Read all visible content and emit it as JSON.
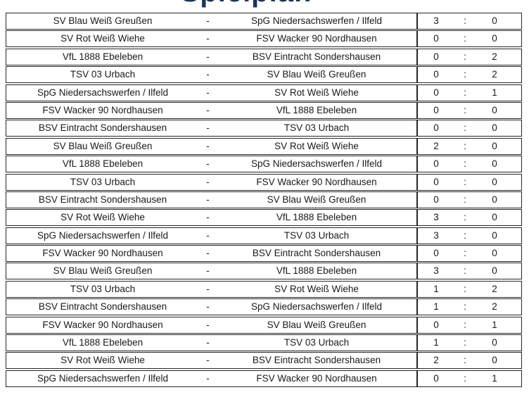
{
  "page": {
    "title": "Spielplan"
  },
  "labels": {
    "team_separator": "-",
    "score_separator": ":"
  },
  "colors": {
    "title": "#17375d",
    "border": "#262626",
    "text": "#1a1a1a",
    "background": "#ffffff"
  },
  "table": {
    "matches": [
      {
        "home": "SV Blau Weiß Greußen",
        "away": "SpG Niedersachswerfen / Ilfeld",
        "home_score": "3",
        "away_score": "0"
      },
      {
        "home": "SV Rot Weiß Wiehe",
        "away": "FSV Wacker 90 Nordhausen",
        "home_score": "0",
        "away_score": "0"
      },
      {
        "home": "VfL 1888 Ebeleben",
        "away": "BSV Eintracht Sondershausen",
        "home_score": "0",
        "away_score": "2"
      },
      {
        "home": "TSV 03 Urbach",
        "away": "SV Blau Weiß Greußen",
        "home_score": "0",
        "away_score": "2"
      },
      {
        "home": "SpG Niedersachswerfen / Ilfeld",
        "away": "SV Rot Weiß Wiehe",
        "home_score": "0",
        "away_score": "1"
      },
      {
        "home": "FSV Wacker 90 Nordhausen",
        "away": "VfL 1888 Ebeleben",
        "home_score": "0",
        "away_score": "0"
      },
      {
        "home": "BSV Eintracht Sondershausen",
        "away": "TSV 03 Urbach",
        "home_score": "0",
        "away_score": "0"
      },
      {
        "home": "SV Blau Weiß Greußen",
        "away": "SV Rot Weiß Wiehe",
        "home_score": "2",
        "away_score": "0"
      },
      {
        "home": "VfL 1888 Ebeleben",
        "away": "SpG Niedersachswerfen / Ilfeld",
        "home_score": "0",
        "away_score": "0"
      },
      {
        "home": "TSV 03 Urbach",
        "away": "FSV Wacker 90 Nordhausen",
        "home_score": "0",
        "away_score": "0"
      },
      {
        "home": "BSV Eintracht Sondershausen",
        "away": "SV Blau Weiß Greußen",
        "home_score": "0",
        "away_score": "0"
      },
      {
        "home": "SV Rot Weiß Wiehe",
        "away": "VfL 1888 Ebeleben",
        "home_score": "3",
        "away_score": "0"
      },
      {
        "home": "SpG Niedersachswerfen / Ilfeld",
        "away": "TSV 03 Urbach",
        "home_score": "3",
        "away_score": "0"
      },
      {
        "home": "FSV Wacker 90 Nordhausen",
        "away": "BSV Eintracht Sondershausen",
        "home_score": "0",
        "away_score": "0"
      },
      {
        "home": "SV Blau Weiß Greußen",
        "away": "VfL 1888 Ebeleben",
        "home_score": "3",
        "away_score": "0"
      },
      {
        "home": "TSV 03 Urbach",
        "away": "SV Rot Weiß Wiehe",
        "home_score": "1",
        "away_score": "2"
      },
      {
        "home": "BSV Eintracht Sondershausen",
        "away": "SpG Niedersachswerfen / Ilfeld",
        "home_score": "1",
        "away_score": "2"
      },
      {
        "home": "FSV Wacker 90 Nordhausen",
        "away": "SV Blau Weiß Greußen",
        "home_score": "0",
        "away_score": "1"
      },
      {
        "home": "VfL 1888 Ebeleben",
        "away": "TSV 03 Urbach",
        "home_score": "1",
        "away_score": "0"
      },
      {
        "home": "SV Rot Weiß Wiehe",
        "away": "BSV Eintracht Sondershausen",
        "home_score": "2",
        "away_score": "0"
      },
      {
        "home": "SpG Niedersachswerfen / Ilfeld",
        "away": "FSV Wacker 90 Nordhausen",
        "home_score": "0",
        "away_score": "1"
      }
    ]
  }
}
